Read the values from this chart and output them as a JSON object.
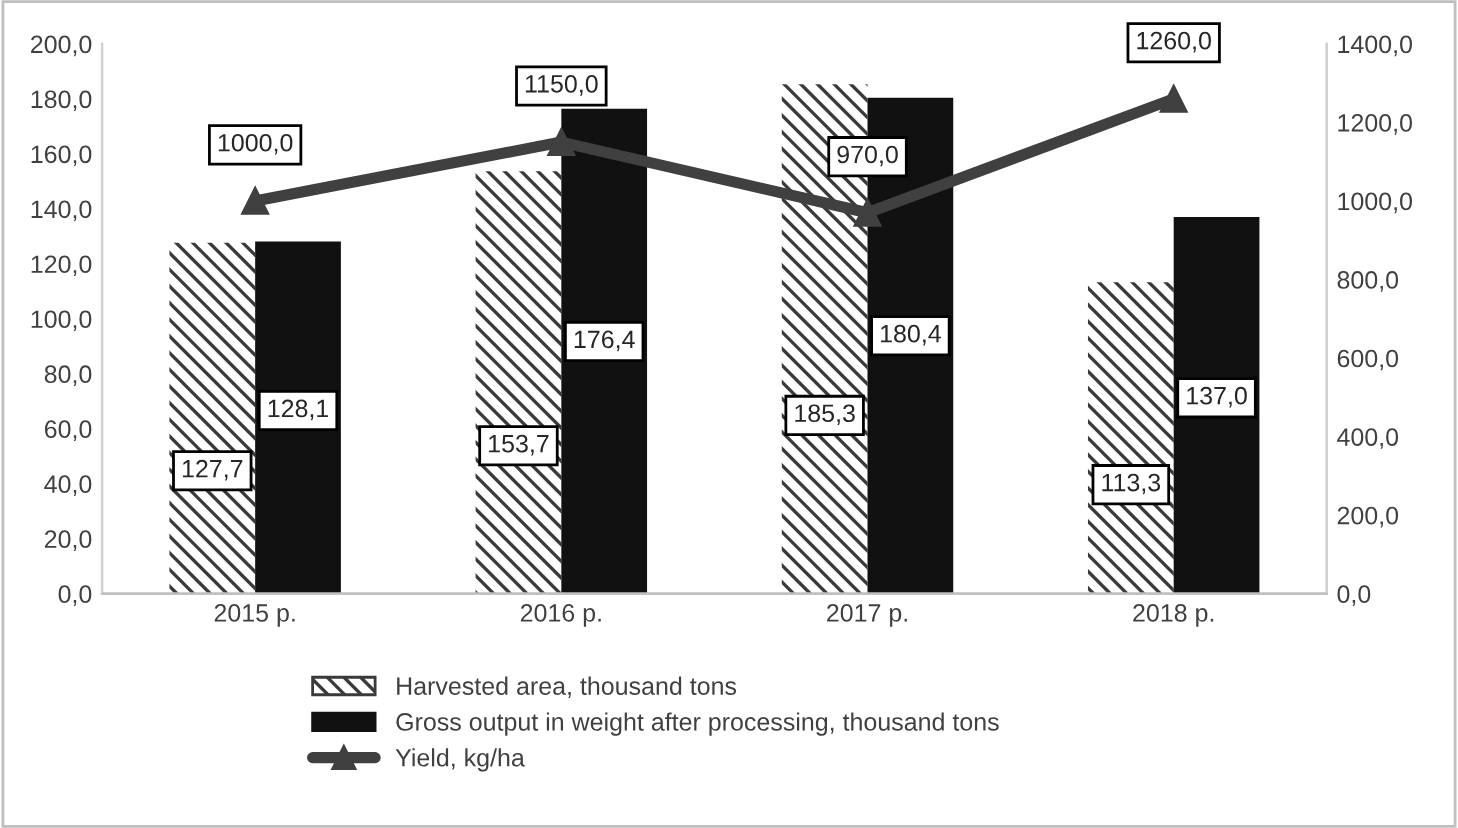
{
  "chart_data": {
    "type": "bar",
    "categories": [
      "2015 р.",
      "2016 р.",
      "2017 р.",
      "2018 р."
    ],
    "series": [
      {
        "name": "Harvested area, thousand tons",
        "color": "#3a3a3a",
        "values": [
          127.7,
          153.7,
          185.3,
          113.3
        ],
        "value_labels": [
          "127,7",
          "153,7",
          "185,3",
          "113,3"
        ]
      },
      {
        "name": "Gross output in weight after processing, thousand tons",
        "color": "#111111",
        "values": [
          128.1,
          176.4,
          180.4,
          137.0
        ],
        "value_labels": [
          "128,1",
          "176,4",
          "180,4",
          "137,0"
        ]
      },
      {
        "name": "Yield, kg/ha",
        "type": "line",
        "axis": "y2",
        "color": "#404040",
        "marker": "triangle",
        "values": [
          1000.0,
          1150.0,
          970.0,
          1260.0
        ],
        "value_labels": [
          "1000,0",
          "1150,0",
          "970,0",
          "1260,0"
        ]
      }
    ],
    "ylim": [
      0,
      200
    ],
    "yticks": [
      {
        "value": 0,
        "label": "0,0"
      },
      {
        "value": 20,
        "label": "20,0"
      },
      {
        "value": 40,
        "label": "40,0"
      },
      {
        "value": 60,
        "label": "60,0"
      },
      {
        "value": 80,
        "label": "80,0"
      },
      {
        "value": 100,
        "label": "100,0"
      },
      {
        "value": 120,
        "label": "120,0"
      },
      {
        "value": 140,
        "label": "140,0"
      },
      {
        "value": 160,
        "label": "160,0"
      },
      {
        "value": 180,
        "label": "180,0"
      },
      {
        "value": 200,
        "label": "200,0"
      }
    ],
    "y2lim": [
      0,
      1400
    ],
    "y2ticks": [
      {
        "value": 0,
        "label": "0,0"
      },
      {
        "value": 200,
        "label": "200,0"
      },
      {
        "value": 400,
        "label": "400,0"
      },
      {
        "value": 600,
        "label": "600,0"
      },
      {
        "value": 800,
        "label": "800,0"
      },
      {
        "value": 1000,
        "label": "1000,0"
      },
      {
        "value": 1200,
        "label": "1200,0"
      },
      {
        "value": 1400,
        "label": "1400,0"
      }
    ],
    "grid": false,
    "legend": "bottom"
  }
}
